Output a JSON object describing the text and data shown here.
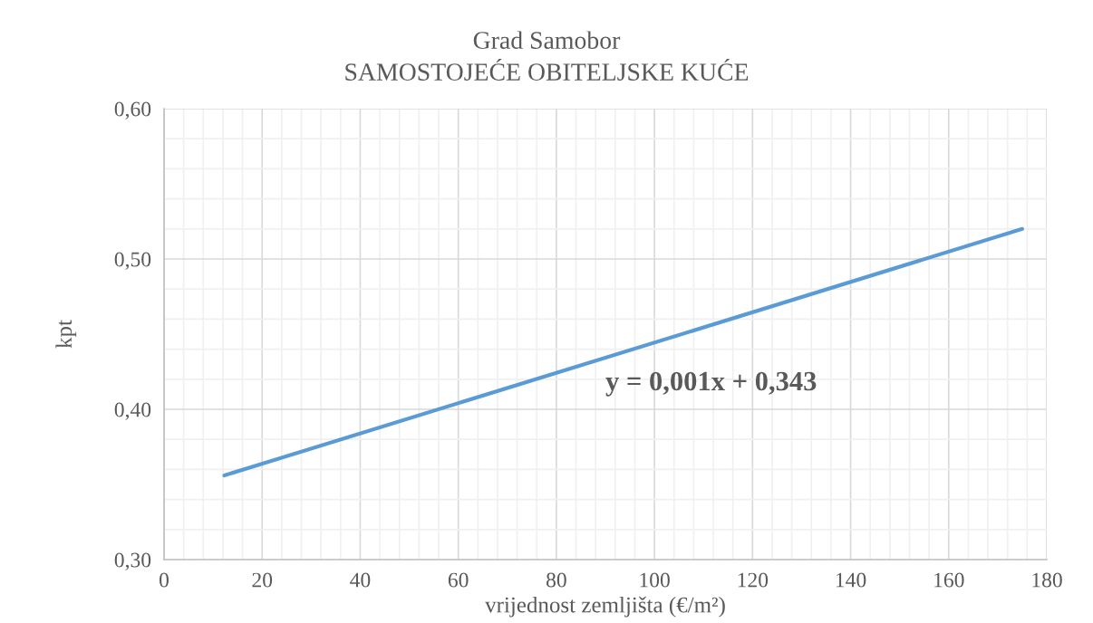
{
  "chart_data": {
    "type": "line",
    "title": "Grad Samobor",
    "subtitle": "SAMOSTOJEĆE OBITELJSKE KUĆE",
    "xlabel": "vrijednost zemljišta (€/m²)",
    "ylabel": "kpt",
    "series": [
      {
        "color": "#5b9bd5",
        "x": [
          12.3,
          175
        ],
        "values": [
          0.356,
          0.52
        ]
      }
    ],
    "annotations": [
      "y = 0,001x + 0,343"
    ],
    "xlim": [
      0,
      180
    ],
    "xticks": [
      0,
      20,
      40,
      60,
      80,
      100,
      120,
      140,
      160,
      180
    ],
    "ylim": [
      0.3,
      0.6
    ],
    "yticks": [
      {
        "value": 0.3,
        "label": "0,30"
      },
      {
        "value": 0.4,
        "label": "0,40"
      },
      {
        "value": 0.5,
        "label": "0,50"
      },
      {
        "value": 0.6,
        "label": "0,60"
      }
    ],
    "grid": true,
    "marker": "none",
    "line_style": "solid"
  }
}
